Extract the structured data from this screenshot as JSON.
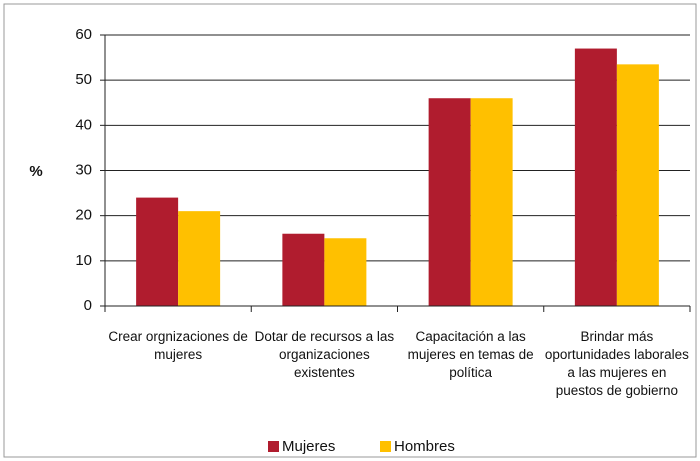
{
  "chart_data": {
    "type": "bar",
    "y_label": "%",
    "categories": [
      "Crear orgnizaciones de mujeres",
      "Dotar de recursos a las organizaciones existentes",
      "Capacitación a las mujeres en temas de política",
      "Brindar más oportunidades laborales a las mujeres en puestos de gobierno"
    ],
    "series": [
      {
        "name": "Mujeres",
        "color": "#b01c2e",
        "values": [
          24,
          16,
          46,
          57
        ]
      },
      {
        "name": "Hombres",
        "color": "#ffc000",
        "values": [
          21,
          15,
          46,
          53.5
        ]
      }
    ],
    "ylim": [
      0,
      60
    ],
    "yticks": [
      0,
      10,
      20,
      30,
      40,
      50,
      60
    ],
    "grid": true,
    "legend": "bottom"
  }
}
